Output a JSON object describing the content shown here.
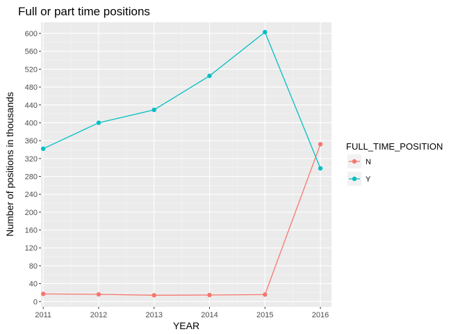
{
  "chart_data": {
    "type": "line",
    "title": "Full or part time positions",
    "xlabel": "YEAR",
    "ylabel": "Number of positions in thousands",
    "x": [
      2011,
      2012,
      2013,
      2014,
      2015,
      2016
    ],
    "xticks": [
      "2011",
      "2012",
      "2013",
      "2014",
      "2015",
      "2016"
    ],
    "yticks": [
      0,
      40,
      80,
      120,
      160,
      200,
      240,
      280,
      320,
      360,
      400,
      440,
      480,
      520,
      560,
      600
    ],
    "xlim": [
      2010.96,
      2016.2
    ],
    "ylim": [
      -12,
      625
    ],
    "grid": true,
    "legend": {
      "title": "FULL_TIME_POSITION",
      "placement": "right"
    },
    "series": [
      {
        "name": "N",
        "color": "#F8766D",
        "values": [
          17,
          16,
          14,
          14.5,
          15.5,
          352
        ]
      },
      {
        "name": "Y",
        "color": "#00BFC4",
        "values": [
          342,
          400,
          429,
          505,
          603,
          298
        ]
      }
    ]
  }
}
